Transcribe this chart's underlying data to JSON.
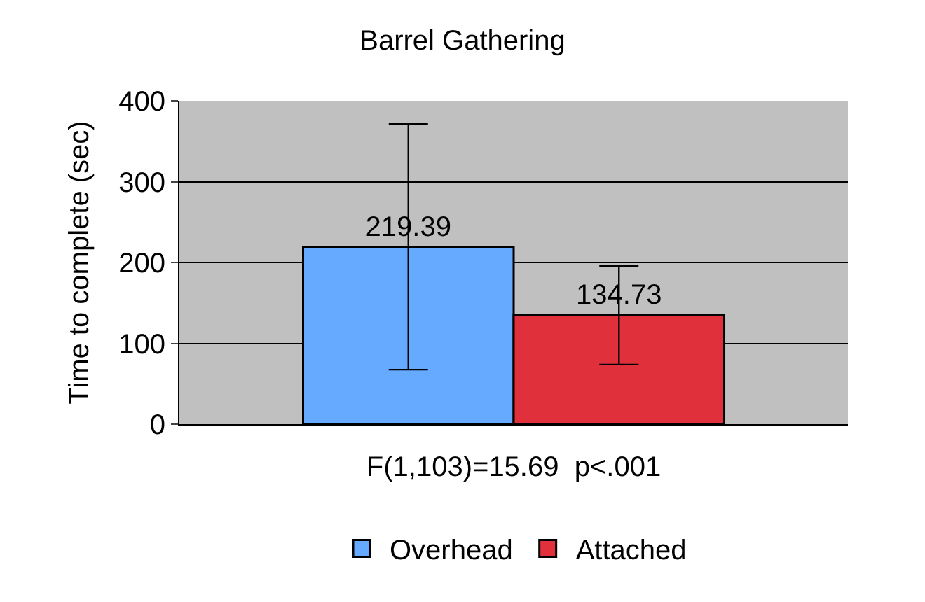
{
  "chart_data": {
    "type": "bar",
    "title": "Barrel Gathering",
    "xlabel": "F(1,103)=15.69  p<.001",
    "ylabel": "Time to complete (sec)",
    "categories": [
      null
    ],
    "series": [
      {
        "name": "Overhead",
        "color": "#66aaff",
        "values": [
          219.39
        ],
        "errors": [
          152
        ]
      },
      {
        "name": "Attached",
        "color": "#e0303c",
        "values": [
          134.73
        ],
        "errors": [
          61
        ]
      }
    ],
    "ylim": [
      0,
      400
    ],
    "yticks": [
      0,
      100,
      200,
      300,
      400
    ],
    "grid": "y",
    "legend": "bottom",
    "data_labels": true
  }
}
